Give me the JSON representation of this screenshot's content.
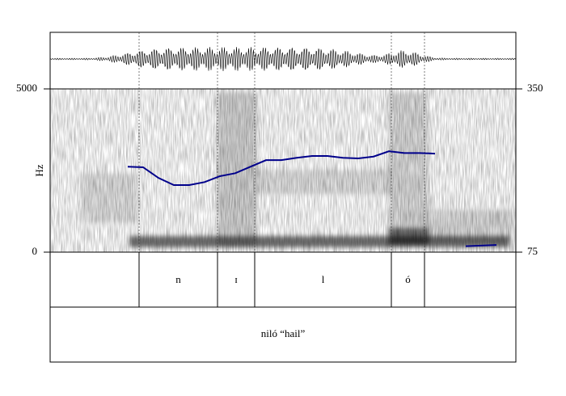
{
  "chart_data": {
    "type": "spectrogram",
    "ylabel": "Hz",
    "ylim": [
      0,
      5000
    ],
    "yticks": [
      0,
      5000
    ],
    "y2lim": [
      75,
      350
    ],
    "y2ticks": [
      75,
      350
    ],
    "series": [
      {
        "axis": "y2",
        "color": "#00008b",
        "values": [
          219,
          218,
          200,
          188,
          188,
          193,
          203,
          208,
          219,
          230,
          230,
          234,
          237,
          237,
          234,
          233,
          236,
          245,
          242,
          242,
          241,
          null,
          85,
          86,
          87
        ]
      }
    ],
    "tiers": [
      {
        "intervals": [
          null,
          "n",
          "ɪ",
          "l",
          "ó",
          null
        ]
      },
      {
        "intervals": [
          "niló “hail”"
        ]
      }
    ]
  }
}
